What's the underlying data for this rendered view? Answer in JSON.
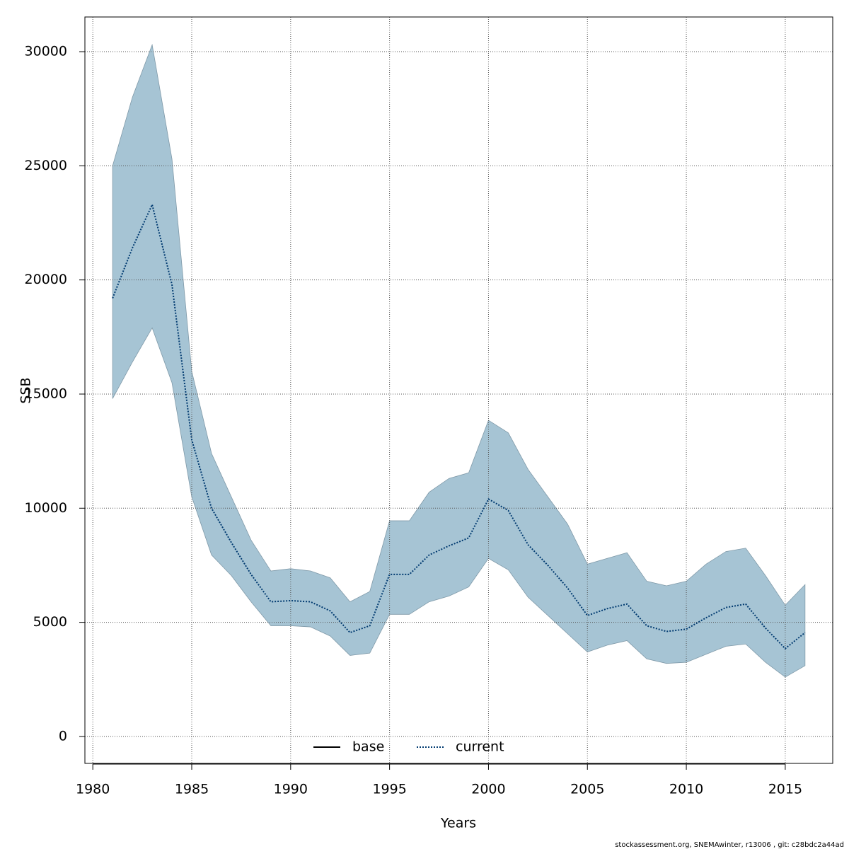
{
  "chart_data": {
    "type": "line",
    "xlabel": "Years",
    "ylabel": "SSB",
    "footnote": "stockassessment.org, SNEMAwinter, r13006 , git: c28bdc2a44ad",
    "x": [
      1981,
      1982,
      1983,
      1984,
      1985,
      1986,
      1987,
      1988,
      1989,
      1990,
      1991,
      1992,
      1993,
      1994,
      1995,
      1996,
      1997,
      1998,
      1999,
      2000,
      2001,
      2002,
      2003,
      2004,
      2005,
      2006,
      2007,
      2008,
      2009,
      2010,
      2011,
      2012,
      2013,
      2014,
      2015,
      2016
    ],
    "series": [
      {
        "name": "base",
        "color": "#000000",
        "dash": false,
        "values": [
          null,
          null,
          null,
          null,
          null,
          null,
          null,
          null,
          null,
          null,
          null,
          null,
          null,
          null,
          null,
          null,
          null,
          null,
          null,
          null,
          null,
          null,
          null,
          null,
          null,
          null,
          null,
          null,
          null,
          null,
          null,
          null,
          null,
          null,
          null,
          null
        ]
      },
      {
        "name": "current",
        "color": "#003a70",
        "dash": true,
        "values": [
          19200,
          21400,
          23300,
          19800,
          13000,
          10000,
          8500,
          7100,
          5900,
          5950,
          5900,
          5500,
          4550,
          4850,
          7100,
          7100,
          7950,
          8350,
          8700,
          10400,
          9900,
          8400,
          7500,
          6500,
          5300,
          5600,
          5800,
          4850,
          4600,
          4700,
          5200,
          5650,
          5800,
          4750,
          3850,
          4550
        ]
      }
    ],
    "band": {
      "color": "#a6c4d4",
      "upper": [
        25000,
        28000,
        30300,
        25300,
        16000,
        12400,
        10500,
        8600,
        7250,
        7350,
        7250,
        6950,
        5900,
        6350,
        9450,
        9450,
        10700,
        11300,
        11550,
        13850,
        13300,
        11700,
        10500,
        9300,
        7550,
        7800,
        8050,
        6800,
        6600,
        6800,
        7550,
        8100,
        8250,
        7050,
        5750,
        6650
      ],
      "lower": [
        14800,
        16400,
        17900,
        15500,
        10500,
        7950,
        7050,
        5900,
        4850,
        4850,
        4800,
        4400,
        3550,
        3650,
        5350,
        5350,
        5900,
        6150,
        6550,
        7800,
        7300,
        6100,
        5300,
        4500,
        3700,
        4000,
        4200,
        3400,
        3200,
        3250,
        3600,
        3950,
        4050,
        3250,
        2600,
        3100
      ]
    },
    "xlim": [
      1979.6,
      2017.4
    ],
    "ylim": [
      -1180,
      31520
    ],
    "xticks": [
      1980,
      1985,
      1990,
      1995,
      2000,
      2005,
      2010,
      2015
    ],
    "yticks": [
      0,
      5000,
      10000,
      15000,
      20000,
      25000,
      30000
    ],
    "grid": true,
    "legend": "bottom"
  }
}
